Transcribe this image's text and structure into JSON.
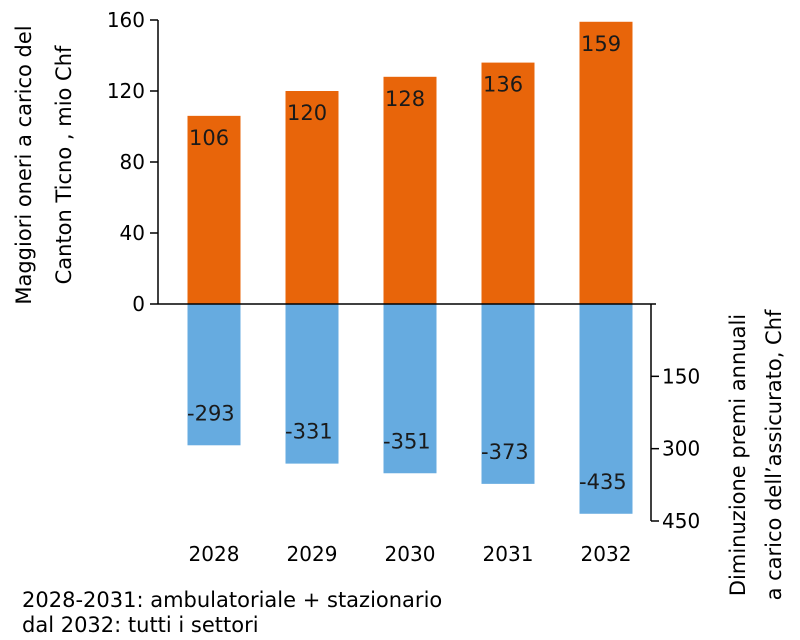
{
  "chart_data": {
    "type": "bar",
    "categories": [
      "2028",
      "2029",
      "2030",
      "2031",
      "2032"
    ],
    "series": [
      {
        "values": [
          106,
          120,
          128,
          136,
          159
        ],
        "color": "#E8650A",
        "axis": "left"
      },
      {
        "values": [
          -293,
          -331,
          -351,
          -373,
          -435
        ],
        "color": "#66ABE0",
        "axis": "right"
      }
    ],
    "left_axis": {
      "label_line1": "Maggiori oneri a carico del",
      "label_line2": "Canton Ticno , mio Chf",
      "ticks": [
        0,
        40,
        80,
        120,
        160
      ],
      "ylim": [
        0,
        160
      ]
    },
    "right_axis": {
      "label_line1": "Diminuzione premi annuali",
      "label_line2": "a carico dell’assicurato, Chf",
      "ticks": [
        150,
        300,
        450
      ],
      "ylim": [
        0,
        450
      ]
    },
    "notes": [
      "2028-2031: ambulatoriale + stazionario",
      "dal 2032: tutti i settori"
    ]
  }
}
